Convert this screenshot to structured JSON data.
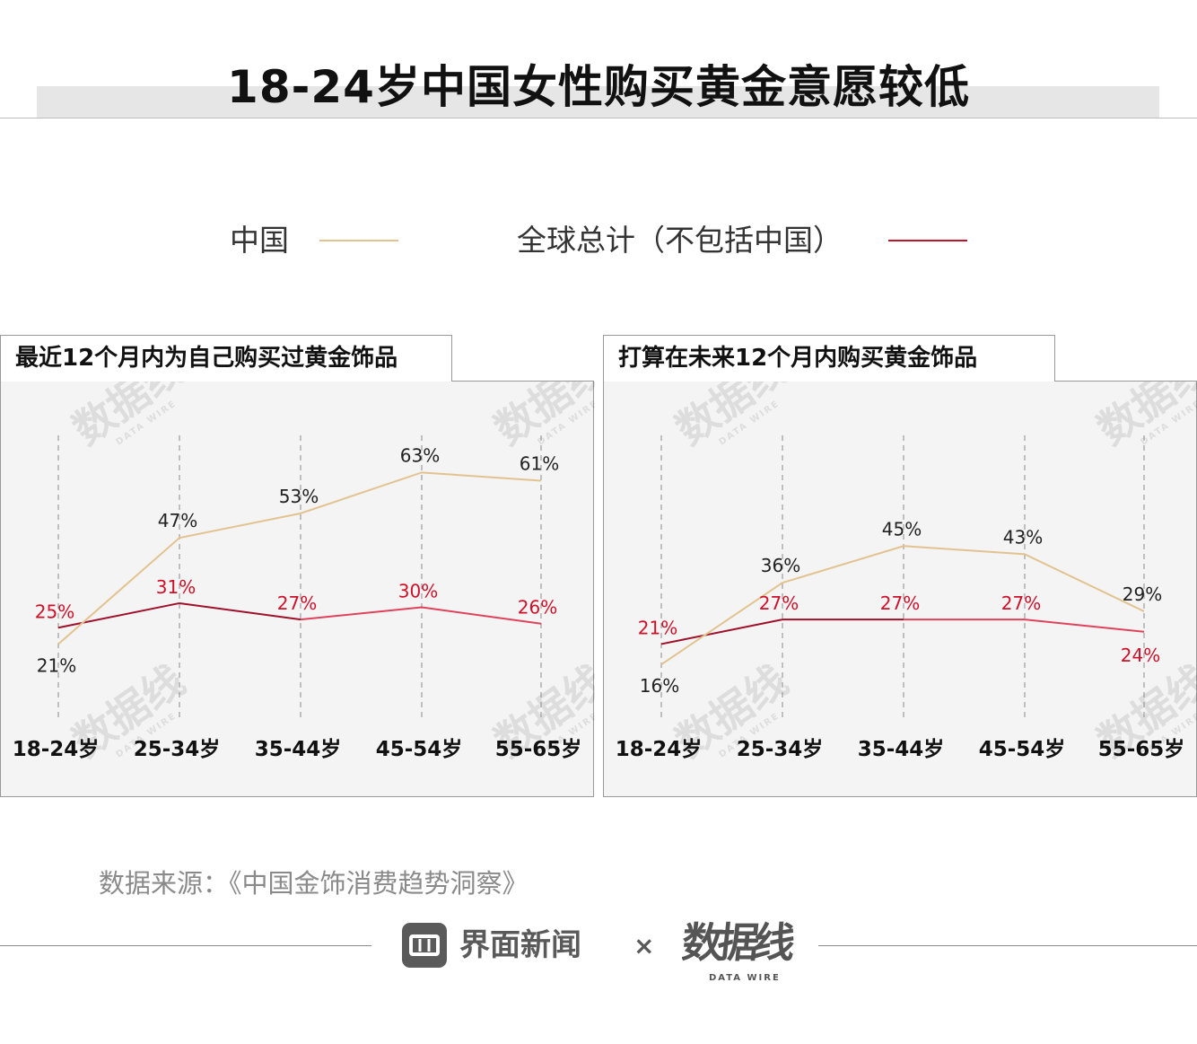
{
  "title": "18-24岁中国女性购买黄金意愿较低",
  "legend": {
    "china": "中国",
    "global": "全球总计（不包括中国）"
  },
  "colors": {
    "china": "#e2c390",
    "global": "#c0142c",
    "global_dark": "#a0102a",
    "global_light": "#e0425c",
    "label_red": "#d01028",
    "panel_bg": "#f4f4f4",
    "guide": "#8a8a8a"
  },
  "chart_data": [
    {
      "type": "line",
      "title": "最近12个月内为自己购买过黄金饰品",
      "categories": [
        "18-24岁",
        "25-34岁",
        "35-44岁",
        "45-54岁",
        "55-65岁"
      ],
      "ylim": [
        0,
        100
      ],
      "series": [
        {
          "name": "中国",
          "values": [
            21,
            47,
            53,
            63,
            61
          ],
          "labels": [
            "21%",
            "47%",
            "53%",
            "63%",
            "61%"
          ]
        },
        {
          "name": "全球总计（不包括中国）",
          "values": [
            25,
            31,
            27,
            30,
            26
          ],
          "labels": [
            "25%",
            "31%",
            "27%",
            "30%",
            "26%"
          ]
        }
      ],
      "grid": "vertical dashed"
    },
    {
      "type": "line",
      "title": "打算在未来12个月内购买黄金饰品",
      "categories": [
        "18-24岁",
        "25-34岁",
        "35-44岁",
        "45-54岁",
        "55-65岁"
      ],
      "ylim": [
        0,
        100
      ],
      "series": [
        {
          "name": "中国",
          "values": [
            16,
            36,
            45,
            43,
            29
          ],
          "labels": [
            "16%",
            "36%",
            "45%",
            "43%",
            "29%"
          ]
        },
        {
          "name": "全球总计（不包括中国）",
          "values": [
            21,
            27,
            27,
            27,
            24
          ],
          "labels": [
            "21%",
            "27%",
            "27%",
            "27%",
            "24%"
          ]
        }
      ],
      "grid": "vertical dashed"
    }
  ],
  "source": "数据来源：《中国金饰消费趋势洞察》",
  "footer": {
    "brand": "界面新闻",
    "separator": "×",
    "logo_icon": "jiemian-logo-icon",
    "partner_logo": "数据线",
    "partner_sub": "DATA WIRE"
  }
}
